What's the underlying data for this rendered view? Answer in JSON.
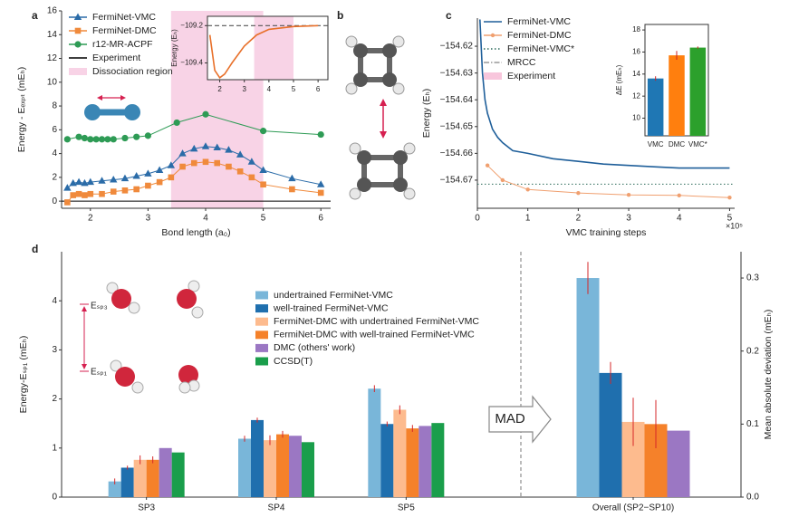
{
  "chart_data": [
    {
      "type": "line",
      "panel": "a",
      "xlabel": "Bond length (a₀)",
      "ylabel": "Energy - Eₑₓₚₜ (mEₕ)",
      "xlim": [
        1.5,
        6.17
      ],
      "ylim": [
        -0.6,
        16
      ],
      "xticks": [
        2,
        3,
        4,
        5,
        6
      ],
      "yticks": [
        0,
        2,
        4,
        6,
        8,
        10,
        12,
        14,
        16
      ],
      "legend": "upper left",
      "series": [
        {
          "name": "FermiNet-VMC",
          "color": "#2b6ca8",
          "marker": "triangle",
          "x": [
            1.6,
            1.7,
            1.8,
            1.9,
            2.0,
            2.2,
            2.4,
            2.6,
            2.8,
            3.0,
            3.2,
            3.4,
            3.6,
            3.8,
            4.0,
            4.2,
            4.4,
            4.6,
            4.8,
            5.0,
            5.5,
            6.0
          ],
          "values": [
            1.1,
            1.5,
            1.6,
            1.5,
            1.6,
            1.7,
            1.8,
            1.9,
            2.1,
            2.3,
            2.6,
            3.0,
            4.0,
            4.4,
            4.6,
            4.5,
            4.3,
            3.9,
            3.3,
            2.6,
            1.9,
            1.4
          ]
        },
        {
          "name": "FermiNet-DMC",
          "color": "#f08a3c",
          "marker": "square",
          "x": [
            1.6,
            1.7,
            1.8,
            1.9,
            2.0,
            2.2,
            2.4,
            2.6,
            2.8,
            3.0,
            3.2,
            3.4,
            3.6,
            3.8,
            4.0,
            4.2,
            4.4,
            4.6,
            4.8,
            5.0,
            5.5,
            6.0
          ],
          "values": [
            -0.1,
            0.5,
            0.6,
            0.5,
            0.6,
            0.6,
            0.8,
            0.9,
            1.0,
            1.3,
            1.6,
            2.0,
            2.9,
            3.2,
            3.3,
            3.2,
            2.9,
            2.5,
            2.0,
            1.4,
            1.0,
            0.7
          ]
        },
        {
          "name": "r12-MR-ACPF",
          "color": "#2e9b55",
          "marker": "circle",
          "x": [
            1.6,
            1.8,
            1.9,
            2.0,
            2.1,
            2.2,
            2.3,
            2.4,
            2.6,
            2.8,
            3.0,
            3.5,
            4.0,
            5.0,
            6.0
          ],
          "values": [
            5.2,
            5.4,
            5.3,
            5.2,
            5.2,
            5.2,
            5.2,
            5.2,
            5.3,
            5.4,
            5.5,
            6.6,
            7.3,
            5.9,
            5.6
          ]
        }
      ],
      "reference_lines": [
        {
          "name": "Experiment",
          "color": "#000000",
          "style": "solid",
          "value": 0
        }
      ],
      "shaded_regions": [
        {
          "name": "Dissociation region",
          "color": "#f8d3e6",
          "range": [
            3.4,
            5.0
          ]
        }
      ]
    },
    {
      "type": "line",
      "ylabel": "Energy (Eₕ)",
      "xlim": [
        1.5,
        6.4
      ],
      "ylim": [
        -109.49,
        -109.15
      ],
      "xticks": [
        2,
        3,
        4,
        5,
        6
      ],
      "yticks": [
        {
          "value": -109.2,
          "label": "−109.2"
        },
        {
          "value": -109.4,
          "label": "−109.4"
        }
      ],
      "series": [
        {
          "color": "#e8702a",
          "marker": "none",
          "x": [
            1.6,
            1.8,
            2.0,
            2.2,
            2.5,
            3.0,
            3.5,
            4.0,
            5.0,
            6.0
          ],
          "values": [
            -109.25,
            -109.44,
            -109.48,
            -109.46,
            -109.4,
            -109.31,
            -109.25,
            -109.22,
            -109.205,
            -109.2
          ]
        }
      ],
      "reference_lines": [
        {
          "color": "#555555",
          "style": "dashed",
          "value": -109.2
        }
      ],
      "shaded_regions": [
        {
          "color": "#f8d3e6",
          "range": [
            3.4,
            5.0
          ]
        }
      ]
    },
    {
      "type": "diagram",
      "panel": "b"
    },
    {
      "type": "line",
      "panel": "c",
      "xlabel": "VMC training steps",
      "ylabel": "Energy (Eₕ)",
      "x_multiplier_label": "×10⁵",
      "xlim": [
        0,
        5.1
      ],
      "ylim": [
        -154.6805,
        -154.6095
      ],
      "xticks": [
        0,
        1,
        2,
        3,
        4,
        5
      ],
      "yticks": [
        {
          "value": -154.62,
          "label": "−154.62"
        },
        {
          "value": -154.63,
          "label": "−154.63"
        },
        {
          "value": -154.64,
          "label": "−154.64"
        },
        {
          "value": -154.65,
          "label": "−154.65"
        },
        {
          "value": -154.66,
          "label": "−154.66"
        },
        {
          "value": -154.67,
          "label": "−154.67"
        }
      ],
      "legend": "upper left",
      "series": [
        {
          "name": "FermiNet-VMC",
          "color": "#1f5f9a",
          "marker": "none",
          "x": [
            0.05,
            0.1,
            0.15,
            0.2,
            0.3,
            0.4,
            0.5,
            0.7,
            1,
            1.5,
            2,
            2.5,
            3,
            3.5,
            4,
            4.5,
            5
          ],
          "values": [
            -154.61,
            -154.63,
            -154.64,
            -154.645,
            -154.651,
            -154.654,
            -154.656,
            -154.659,
            -154.66,
            -154.662,
            -154.663,
            -154.664,
            -154.6645,
            -154.665,
            -154.6655,
            -154.6655,
            -154.6655
          ]
        },
        {
          "name": "FermiNet-DMC",
          "color": "#f0a070",
          "marker": "dot",
          "x": [
            0.2,
            0.5,
            1,
            2,
            3,
            4,
            5
          ],
          "values": [
            -154.6645,
            -154.67,
            -154.6735,
            -154.6748,
            -154.6755,
            -154.6757,
            -154.6765
          ]
        }
      ],
      "reference_lines": [
        {
          "name": "FermiNet-VMC*",
          "color": "#2a6a5a",
          "style": "dotted",
          "value": -154.6715
        }
      ],
      "legend_entries": [
        {
          "name": "MRCC",
          "color": "#999999",
          "style": "dashdot"
        },
        {
          "name": "Experiment",
          "color": "#f8c6dc",
          "style": "band"
        }
      ]
    },
    {
      "type": "bar",
      "ylabel": "ΔE (mEₕ)",
      "categories": [
        "VMC",
        "DMC",
        "VMC*"
      ],
      "values": [
        13.6,
        15.7,
        16.4
      ],
      "errors": [
        0.2,
        0.4,
        0.1
      ],
      "colors": [
        "#1f77b4",
        "#ff7f0e",
        "#2ca02c"
      ],
      "ylim": [
        8.4,
        18.5
      ],
      "yticks": [
        10,
        12,
        14,
        16,
        18
      ]
    },
    {
      "type": "grouped_bar",
      "panel": "d",
      "ylabel": "Energy-Eₛₚ₁ (mEₕ)",
      "y2label": "Mean absolute deviation (mEₕ)",
      "categories": [
        "SP3",
        "SP4",
        "SP5",
        "Overall (SP2−SP10)"
      ],
      "category_axis": [
        "y",
        "y",
        "y",
        "y2"
      ],
      "ylim": [
        0,
        5
      ],
      "yticks": [
        0,
        1,
        2,
        3,
        4
      ],
      "y2lim": [
        0,
        0.336
      ],
      "y2ticks": [
        {
          "value": 0,
          "label": "0.0"
        },
        0.1,
        0.2,
        0.3
      ],
      "series": [
        {
          "name": "undertrained FermiNet-VMC",
          "color": "#79b6d9",
          "values": [
            0.32,
            1.19,
            2.21,
            0.3
          ],
          "errors": [
            0.06,
            0.06,
            0.07,
            0.022
          ]
        },
        {
          "name": "well-trained FermiNet-VMC",
          "color": "#1f6fae",
          "values": [
            0.6,
            1.57,
            1.49,
            0.17
          ],
          "errors": [
            0.04,
            0.05,
            0.05,
            0.015
          ]
        },
        {
          "name": "FermiNet-DMC with undertrained FermiNet-VMC",
          "color": "#fdbb8e",
          "values": [
            0.76,
            1.16,
            1.78,
            0.103
          ],
          "errors": [
            0.09,
            0.1,
            0.09,
            0.033
          ]
        },
        {
          "name": "FermiNet-DMC with well-trained FermiNet-VMC",
          "color": "#f5812a",
          "values": [
            0.76,
            1.28,
            1.4,
            0.1
          ],
          "errors": [
            0.07,
            0.07,
            0.07,
            0.033
          ]
        },
        {
          "name": "DMC (others' work)",
          "color": "#9b77c3",
          "values": [
            1.0,
            1.25,
            1.45,
            0.091
          ],
          "errors": [
            null,
            null,
            null,
            null
          ]
        },
        {
          "name": "CCSD(T)",
          "color": "#1a9e4b",
          "values": [
            0.91,
            1.12,
            1.51,
            null
          ],
          "errors": [
            null,
            null,
            null,
            null
          ]
        }
      ],
      "annotations": {
        "arrow": "MAD",
        "level_top": "Eₛₚ₃",
        "level_bottom": "Eₛₚ₁"
      }
    }
  ]
}
